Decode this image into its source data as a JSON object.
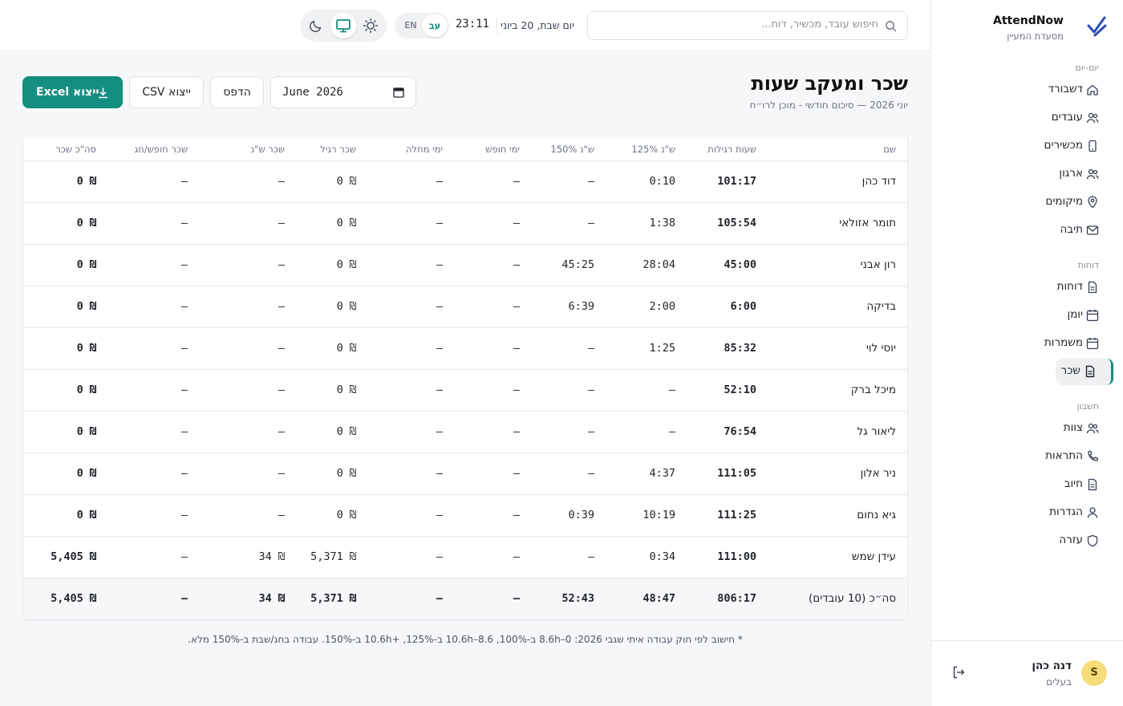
{
  "brand": {
    "name": "AttendNow",
    "subtitle": "מסעדת המעיין"
  },
  "sidebar": {
    "sections": [
      {
        "label": "יום-יום",
        "items": [
          {
            "label": "דשבורד",
            "icon": "home-icon"
          },
          {
            "label": "עובדים",
            "icon": "users-icon"
          },
          {
            "label": "מכשירים",
            "icon": "device-icon"
          },
          {
            "label": "ארגון",
            "icon": "org-icon"
          },
          {
            "label": "מיקומים",
            "icon": "location-icon"
          },
          {
            "label": "תיבה",
            "icon": "mail-icon"
          }
        ]
      },
      {
        "label": "דוחות",
        "items": [
          {
            "label": "דוחות",
            "icon": "report-icon"
          },
          {
            "label": "יומן",
            "icon": "calendar-icon"
          },
          {
            "label": "משמרות",
            "icon": "calendar-icon"
          },
          {
            "label": "שכר",
            "icon": "payroll-icon",
            "active": true
          }
        ]
      },
      {
        "label": "חשבון",
        "items": [
          {
            "label": "צוות",
            "icon": "team-icon"
          },
          {
            "label": "התראות",
            "icon": "phone-icon"
          },
          {
            "label": "חיוב",
            "icon": "billing-icon"
          },
          {
            "label": "הגדרות",
            "icon": "user-icon"
          },
          {
            "label": "עזרה",
            "icon": "shield-icon"
          }
        ]
      }
    ]
  },
  "user": {
    "initial": "S",
    "name": "דנה כהן",
    "role": "בעלים"
  },
  "header": {
    "search_placeholder": "חיפוש עובד, מכשיר, דוח...",
    "date": "יום שבת, 20 ביוני",
    "time": "23:11",
    "lang_active": "עב",
    "lang_other": "EN"
  },
  "page": {
    "title": "שכר ומעקב שעות",
    "subtitle": "יוני 2026 — סיכום חודשי - מוכן לרו״ח",
    "month_value": "June  2026",
    "print_label": "הדפס",
    "csv_label": "ייצוא CSV",
    "excel_label": "ייצוא Excel"
  },
  "table": {
    "headers": [
      "שם",
      "שעות רגילות",
      "ש\"נ 125%",
      "ש\"נ 150%",
      "ימי חופש",
      "ימי מחלה",
      "שכר רגיל",
      "שכר ש\"נ",
      "שכר חופש/חג",
      "סה\"כ שכר"
    ],
    "rows": [
      [
        "דוד כהן",
        "101:17",
        "0:10",
        "–",
        "–",
        "–",
        "₪ 0",
        "–",
        "–",
        "₪ 0"
      ],
      [
        "תומר אזולאי",
        "105:54",
        "1:38",
        "–",
        "–",
        "–",
        "₪ 0",
        "–",
        "–",
        "₪ 0"
      ],
      [
        "רון אבני",
        "45:00",
        "28:04",
        "45:25",
        "–",
        "–",
        "₪ 0",
        "–",
        "–",
        "₪ 0"
      ],
      [
        "בדיקה",
        "6:00",
        "2:00",
        "6:39",
        "–",
        "–",
        "₪ 0",
        "–",
        "–",
        "₪ 0"
      ],
      [
        "יוסי לוי",
        "85:32",
        "1:25",
        "–",
        "–",
        "–",
        "₪ 0",
        "–",
        "–",
        "₪ 0"
      ],
      [
        "מיכל ברק",
        "52:10",
        "–",
        "–",
        "–",
        "–",
        "₪ 0",
        "–",
        "–",
        "₪ 0"
      ],
      [
        "ליאור גל",
        "76:54",
        "–",
        "–",
        "–",
        "–",
        "₪ 0",
        "–",
        "–",
        "₪ 0"
      ],
      [
        "ניר אלון",
        "111:05",
        "4:37",
        "–",
        "–",
        "–",
        "₪ 0",
        "–",
        "–",
        "₪ 0"
      ],
      [
        "גיא נחום",
        "111:25",
        "10:19",
        "0:39",
        "–",
        "–",
        "₪ 0",
        "–",
        "–",
        "₪ 0"
      ],
      [
        "עידן שמש",
        "111:00",
        "0:34",
        "–",
        "–",
        "–",
        "₪ 5,371",
        "₪ 34",
        "–",
        "₪ 5,405"
      ]
    ],
    "total": [
      "סה״כ (10 עובדים)",
      "806:17",
      "48:47",
      "52:43",
      "–",
      "–",
      "₪ 5,371",
      "₪ 34",
      "–",
      "₪ 5,405"
    ]
  },
  "footnote": "* חישוב לפי חוק עבודה איתי שגבי 2026: 0–8.6h ב-100%, 8.6–10.6h ב-125%, +10.6h ב-150%. עבודה בחג/שבת ב-150% מלא.",
  "colors": {
    "accent": "#138f7f",
    "avatar": "#f7dc7a"
  }
}
